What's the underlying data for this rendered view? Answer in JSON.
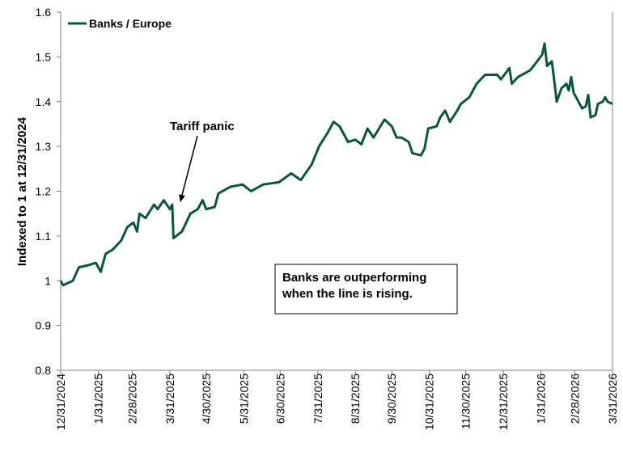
{
  "chart_data": {
    "type": "line",
    "title": "",
    "xlabel": "",
    "ylabel": "Indexed to 1 at 12/31/2024",
    "ylim": [
      0.8,
      1.6
    ],
    "yticks": [
      0.8,
      0.9,
      1,
      1.1,
      1.2,
      1.3,
      1.4,
      1.5,
      1.6
    ],
    "ytick_labels": [
      "0.8",
      "0.9",
      "1",
      "1.1",
      "1.2",
      "1.3",
      "1.4",
      "1.5",
      "1.6"
    ],
    "x_unit": "days since 12/31/2024",
    "xlim": [
      0,
      455
    ],
    "xticks": [
      0,
      31,
      59,
      90,
      120,
      151,
      181,
      212,
      243,
      273,
      304,
      334,
      365,
      396,
      424,
      455
    ],
    "xtick_labels": [
      "12/31/2024",
      "1/31/2025",
      "2/28/2025",
      "3/31/2025",
      "4/30/2025",
      "5/31/2025",
      "6/30/2025",
      "7/31/2025",
      "8/31/2025",
      "9/30/2025",
      "10/31/2025",
      "11/30/2025",
      "12/31/2025",
      "1/31/2026",
      "2/28/2026",
      "3/31/2026"
    ],
    "grid": false,
    "legend": {
      "placement": "top-left",
      "entries": [
        "Banks / Europe"
      ]
    },
    "series": [
      {
        "name": "Banks / Europe",
        "color": "#0b5541",
        "x": [
          0,
          2,
          10,
          15,
          23,
          29,
          33,
          37,
          43,
          50,
          55,
          60,
          63,
          65,
          70,
          77,
          80,
          85,
          90,
          92,
          93,
          100,
          107,
          113,
          117,
          120,
          127,
          130,
          140,
          150,
          157,
          167,
          180,
          190,
          198,
          207,
          213,
          220,
          225,
          230,
          237,
          243,
          248,
          253,
          258,
          267,
          273,
          277,
          281,
          287,
          290,
          297,
          300,
          303,
          310,
          313,
          317,
          321,
          327,
          330,
          337,
          343,
          350,
          360,
          363,
          370,
          372,
          377,
          387,
          390,
          397,
          399,
          401,
          405,
          409,
          413,
          417,
          419,
          421,
          423,
          427,
          430,
          433,
          435,
          437,
          441,
          443,
          447,
          449,
          451,
          455
        ],
        "values": [
          1.0,
          0.99,
          1.0,
          1.03,
          1.035,
          1.04,
          1.02,
          1.06,
          1.07,
          1.09,
          1.12,
          1.13,
          1.11,
          1.15,
          1.14,
          1.17,
          1.16,
          1.18,
          1.16,
          1.17,
          1.095,
          1.11,
          1.15,
          1.16,
          1.18,
          1.16,
          1.165,
          1.195,
          1.21,
          1.215,
          1.2,
          1.215,
          1.22,
          1.24,
          1.225,
          1.26,
          1.3,
          1.33,
          1.355,
          1.345,
          1.31,
          1.315,
          1.305,
          1.34,
          1.32,
          1.36,
          1.345,
          1.32,
          1.32,
          1.31,
          1.285,
          1.28,
          1.295,
          1.34,
          1.345,
          1.365,
          1.38,
          1.355,
          1.38,
          1.395,
          1.41,
          1.44,
          1.46,
          1.46,
          1.45,
          1.475,
          1.44,
          1.455,
          1.47,
          1.48,
          1.505,
          1.53,
          1.48,
          1.49,
          1.4,
          1.43,
          1.44,
          1.425,
          1.455,
          1.42,
          1.4,
          1.385,
          1.39,
          1.415,
          1.365,
          1.37,
          1.395,
          1.4,
          1.41,
          1.4,
          1.395
        ]
      }
    ],
    "annotations": [
      {
        "text": "Tariff panic",
        "points_to_x": 96,
        "points_to_y": 1.17
      },
      {
        "text_lines": [
          "Banks are outperforming",
          "when the line is rising."
        ]
      }
    ]
  }
}
